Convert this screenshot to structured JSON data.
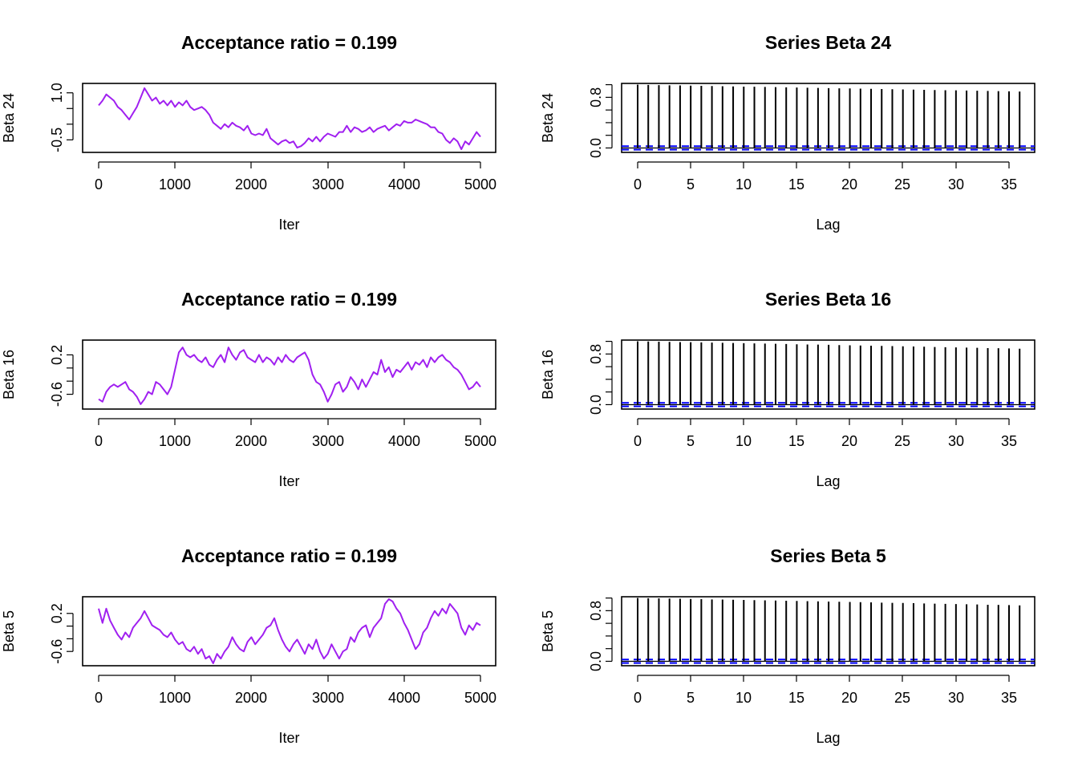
{
  "chart_data": [
    {
      "type": "line",
      "title": "Acceptance ratio = 0.199",
      "xlabel": "Iter",
      "ylabel": "Beta 24",
      "xlim": [
        0,
        5000
      ],
      "ylim": [
        -0.9,
        1.3
      ],
      "xticks": [
        "0",
        "1000",
        "2000",
        "3000",
        "4000",
        "5000"
      ],
      "yticks": [
        "-0.5",
        "1.0"
      ],
      "line_color": "#a020f0",
      "series": [
        {
          "x": [
            0,
            50,
            100,
            150,
            200,
            250,
            300,
            350,
            400,
            450,
            500,
            550,
            600,
            650,
            700,
            750,
            800,
            850,
            900,
            950,
            1000,
            1050,
            1100,
            1150,
            1200,
            1250,
            1300,
            1350,
            1400,
            1450,
            1500,
            1550,
            1600,
            1650,
            1700,
            1750,
            1800,
            1850,
            1900,
            1950,
            2000,
            2050,
            2100,
            2150,
            2200,
            2250,
            2300,
            2350,
            2400,
            2450,
            2500,
            2550,
            2600,
            2650,
            2700,
            2750,
            2800,
            2850,
            2900,
            2950,
            3000,
            3050,
            3100,
            3150,
            3200,
            3250,
            3300,
            3350,
            3400,
            3450,
            3500,
            3550,
            3600,
            3650,
            3700,
            3750,
            3800,
            3850,
            3900,
            3950,
            4000,
            4050,
            4100,
            4150,
            4200,
            4250,
            4300,
            4350,
            4400,
            4450,
            4500,
            4550,
            4600,
            4650,
            4700,
            4750,
            4800,
            4850,
            4900,
            4950,
            5000
          ],
          "values": [
            0.6,
            0.75,
            0.95,
            0.85,
            0.75,
            0.55,
            0.45,
            0.3,
            0.15,
            0.35,
            0.55,
            0.85,
            1.15,
            0.95,
            0.75,
            0.85,
            0.65,
            0.75,
            0.6,
            0.75,
            0.55,
            0.7,
            0.6,
            0.75,
            0.55,
            0.45,
            0.5,
            0.55,
            0.45,
            0.3,
            0.05,
            -0.05,
            -0.15,
            0.0,
            -0.1,
            0.05,
            -0.05,
            -0.1,
            -0.2,
            -0.05,
            -0.3,
            -0.35,
            -0.3,
            -0.35,
            -0.15,
            -0.45,
            -0.55,
            -0.65,
            -0.55,
            -0.5,
            -0.6,
            -0.55,
            -0.75,
            -0.7,
            -0.6,
            -0.45,
            -0.55,
            -0.4,
            -0.55,
            -0.4,
            -0.3,
            -0.35,
            -0.4,
            -0.25,
            -0.25,
            -0.05,
            -0.25,
            -0.1,
            -0.15,
            -0.25,
            -0.2,
            -0.1,
            -0.25,
            -0.15,
            -0.1,
            -0.05,
            -0.2,
            -0.1,
            0.0,
            -0.05,
            0.1,
            0.05,
            0.05,
            0.15,
            0.1,
            0.05,
            0.0,
            -0.1,
            -0.1,
            -0.25,
            -0.3,
            -0.5,
            -0.6,
            -0.45,
            -0.55,
            -0.8,
            -0.55,
            -0.65,
            -0.45,
            -0.25,
            -0.4
          ]
        }
      ]
    },
    {
      "type": "bar",
      "title": "Series Beta 24",
      "xlabel": "Lag",
      "ylabel": "Beta 24",
      "xlim": [
        -1.5,
        37.5
      ],
      "ylim": [
        -0.07,
        1.02
      ],
      "xticks": [
        "0",
        "5",
        "10",
        "15",
        "20",
        "25",
        "30",
        "35"
      ],
      "yticks": [
        "0.0",
        "0.8"
      ],
      "ci": 0.028,
      "ci_color": "#0000ff",
      "lags": [
        0,
        1,
        2,
        3,
        4,
        5,
        6,
        7,
        8,
        9,
        10,
        11,
        12,
        13,
        14,
        15,
        16,
        17,
        18,
        19,
        20,
        21,
        22,
        23,
        24,
        25,
        26,
        27,
        28,
        29,
        30,
        31,
        32,
        33,
        34,
        35,
        36
      ],
      "values": [
        1.0,
        0.996,
        0.993,
        0.99,
        0.988,
        0.985,
        0.982,
        0.979,
        0.976,
        0.973,
        0.97,
        0.967,
        0.964,
        0.961,
        0.958,
        0.955,
        0.952,
        0.949,
        0.946,
        0.943,
        0.94,
        0.937,
        0.934,
        0.931,
        0.928,
        0.925,
        0.922,
        0.919,
        0.916,
        0.913,
        0.91,
        0.907,
        0.904,
        0.901,
        0.898,
        0.895,
        0.892
      ]
    },
    {
      "type": "line",
      "title": "Acceptance ratio = 0.199",
      "xlabel": "Iter",
      "ylabel": "Beta 16",
      "xlim": [
        0,
        5000
      ],
      "ylim": [
        -0.9,
        0.5
      ],
      "xticks": [
        "0",
        "1000",
        "2000",
        "3000",
        "4000",
        "5000"
      ],
      "yticks": [
        "-0.6",
        "0.2"
      ],
      "line_color": "#a020f0",
      "series": [
        {
          "x": [
            0,
            50,
            100,
            150,
            200,
            250,
            300,
            350,
            400,
            450,
            500,
            550,
            600,
            650,
            700,
            750,
            800,
            850,
            900,
            950,
            1000,
            1050,
            1100,
            1150,
            1200,
            1250,
            1300,
            1350,
            1400,
            1450,
            1500,
            1550,
            1600,
            1650,
            1700,
            1750,
            1800,
            1850,
            1900,
            1950,
            2000,
            2050,
            2100,
            2150,
            2200,
            2250,
            2300,
            2350,
            2400,
            2450,
            2500,
            2550,
            2600,
            2650,
            2700,
            2750,
            2800,
            2850,
            2900,
            2950,
            3000,
            3050,
            3100,
            3150,
            3200,
            3250,
            3300,
            3350,
            3400,
            3450,
            3500,
            3550,
            3600,
            3650,
            3700,
            3750,
            3800,
            3850,
            3900,
            3950,
            4000,
            4050,
            4100,
            4150,
            4200,
            4250,
            4300,
            4350,
            4400,
            4450,
            4500,
            4550,
            4600,
            4650,
            4700,
            4750,
            4800,
            4850,
            4900,
            4950,
            5000
          ],
          "values": [
            -0.7,
            -0.75,
            -0.55,
            -0.45,
            -0.4,
            -0.45,
            -0.4,
            -0.35,
            -0.5,
            -0.55,
            -0.65,
            -0.8,
            -0.7,
            -0.55,
            -0.6,
            -0.35,
            -0.4,
            -0.5,
            -0.6,
            -0.45,
            -0.1,
            0.25,
            0.35,
            0.2,
            0.15,
            0.2,
            0.1,
            0.05,
            0.15,
            0.0,
            -0.05,
            0.1,
            0.2,
            0.05,
            0.35,
            0.2,
            0.1,
            0.25,
            0.3,
            0.15,
            0.1,
            0.05,
            0.2,
            0.05,
            0.15,
            0.1,
            0.0,
            0.15,
            0.05,
            0.2,
            0.1,
            0.05,
            0.15,
            0.2,
            0.25,
            0.1,
            -0.2,
            -0.35,
            -0.4,
            -0.55,
            -0.75,
            -0.6,
            -0.4,
            -0.35,
            -0.55,
            -0.45,
            -0.25,
            -0.35,
            -0.5,
            -0.3,
            -0.45,
            -0.3,
            -0.15,
            -0.2,
            0.1,
            -0.15,
            -0.05,
            -0.25,
            -0.1,
            -0.15,
            -0.05,
            0.05,
            -0.1,
            0.05,
            0.0,
            0.1,
            -0.05,
            0.15,
            0.05,
            0.15,
            0.2,
            0.1,
            0.05,
            -0.05,
            -0.1,
            -0.2,
            -0.35,
            -0.5,
            -0.45,
            -0.35,
            -0.45
          ]
        }
      ]
    },
    {
      "type": "bar",
      "title": "Series Beta 16",
      "xlabel": "Lag",
      "ylabel": "Beta 16",
      "xlim": [
        -1.5,
        37.5
      ],
      "ylim": [
        -0.07,
        1.02
      ],
      "xticks": [
        "0",
        "5",
        "10",
        "15",
        "20",
        "25",
        "30",
        "35"
      ],
      "yticks": [
        "0.0",
        "0.8"
      ],
      "ci": 0.028,
      "ci_color": "#0000ff",
      "lags": [
        0,
        1,
        2,
        3,
        4,
        5,
        6,
        7,
        8,
        9,
        10,
        11,
        12,
        13,
        14,
        15,
        16,
        17,
        18,
        19,
        20,
        21,
        22,
        23,
        24,
        25,
        26,
        27,
        28,
        29,
        30,
        31,
        32,
        33,
        34,
        35,
        36
      ],
      "values": [
        1.0,
        0.998,
        0.995,
        0.992,
        0.989,
        0.986,
        0.983,
        0.98,
        0.977,
        0.974,
        0.971,
        0.967,
        0.964,
        0.961,
        0.958,
        0.954,
        0.951,
        0.948,
        0.945,
        0.941,
        0.938,
        0.935,
        0.931,
        0.928,
        0.925,
        0.921,
        0.918,
        0.915,
        0.911,
        0.908,
        0.905,
        0.901,
        0.898,
        0.894,
        0.891,
        0.888,
        0.884
      ]
    },
    {
      "type": "line",
      "title": "Acceptance ratio = 0.199",
      "xlabel": "Iter",
      "ylabel": "Beta 5",
      "xlim": [
        0,
        5000
      ],
      "ylim": [
        -0.9,
        0.55
      ],
      "xticks": [
        "0",
        "1000",
        "2000",
        "3000",
        "4000",
        "5000"
      ],
      "yticks": [
        "-0.6",
        "0.2"
      ],
      "line_color": "#a020f0",
      "series": [
        {
          "x": [
            0,
            50,
            100,
            150,
            200,
            250,
            300,
            350,
            400,
            450,
            500,
            550,
            600,
            650,
            700,
            750,
            800,
            850,
            900,
            950,
            1000,
            1050,
            1100,
            1150,
            1200,
            1250,
            1300,
            1350,
            1400,
            1450,
            1500,
            1550,
            1600,
            1650,
            1700,
            1750,
            1800,
            1850,
            1900,
            1950,
            2000,
            2050,
            2100,
            2150,
            2200,
            2250,
            2300,
            2350,
            2400,
            2450,
            2500,
            2550,
            2600,
            2650,
            2700,
            2750,
            2800,
            2850,
            2900,
            2950,
            3000,
            3050,
            3100,
            3150,
            3200,
            3250,
            3300,
            3350,
            3400,
            3450,
            3500,
            3550,
            3600,
            3650,
            3700,
            3750,
            3800,
            3850,
            3900,
            3950,
            4000,
            4050,
            4100,
            4150,
            4200,
            4250,
            4300,
            4350,
            4400,
            4450,
            4500,
            4550,
            4600,
            4650,
            4700,
            4750,
            4800,
            4850,
            4900,
            4950,
            5000
          ],
          "values": [
            0.3,
            0.0,
            0.3,
            0.05,
            -0.1,
            -0.25,
            -0.35,
            -0.2,
            -0.3,
            -0.1,
            0.0,
            0.1,
            0.25,
            0.1,
            -0.05,
            -0.1,
            -0.15,
            -0.25,
            -0.3,
            -0.2,
            -0.35,
            -0.45,
            -0.4,
            -0.55,
            -0.6,
            -0.5,
            -0.65,
            -0.55,
            -0.75,
            -0.7,
            -0.85,
            -0.65,
            -0.75,
            -0.6,
            -0.5,
            -0.3,
            -0.45,
            -0.55,
            -0.6,
            -0.4,
            -0.3,
            -0.45,
            -0.35,
            -0.25,
            -0.1,
            -0.05,
            0.1,
            -0.15,
            -0.35,
            -0.5,
            -0.6,
            -0.45,
            -0.35,
            -0.5,
            -0.65,
            -0.45,
            -0.55,
            -0.35,
            -0.6,
            -0.75,
            -0.65,
            -0.45,
            -0.6,
            -0.75,
            -0.6,
            -0.55,
            -0.3,
            -0.4,
            -0.2,
            -0.1,
            -0.05,
            -0.3,
            -0.1,
            0.0,
            0.1,
            0.4,
            0.5,
            0.45,
            0.3,
            0.2,
            0.0,
            -0.15,
            -0.35,
            -0.55,
            -0.45,
            -0.2,
            -0.1,
            0.1,
            0.25,
            0.15,
            0.3,
            0.2,
            0.4,
            0.3,
            0.2,
            -0.1,
            -0.25,
            -0.05,
            -0.15,
            0.0,
            -0.05
          ]
        }
      ]
    },
    {
      "type": "bar",
      "title": "Series Beta 5",
      "xlabel": "Lag",
      "ylabel": "Beta 5",
      "xlim": [
        -1.5,
        37.5
      ],
      "ylim": [
        -0.07,
        1.02
      ],
      "xticks": [
        "0",
        "5",
        "10",
        "15",
        "20",
        "25",
        "30",
        "35"
      ],
      "yticks": [
        "0.0",
        "0.8"
      ],
      "ci": 0.028,
      "ci_color": "#0000ff",
      "lags": [
        0,
        1,
        2,
        3,
        4,
        5,
        6,
        7,
        8,
        9,
        10,
        11,
        12,
        13,
        14,
        15,
        16,
        17,
        18,
        19,
        20,
        21,
        22,
        23,
        24,
        25,
        26,
        27,
        28,
        29,
        30,
        31,
        32,
        33,
        34,
        35,
        36
      ],
      "values": [
        1.0,
        0.997,
        0.994,
        0.991,
        0.988,
        0.985,
        0.982,
        0.978,
        0.975,
        0.972,
        0.969,
        0.966,
        0.963,
        0.96,
        0.956,
        0.953,
        0.95,
        0.947,
        0.944,
        0.94,
        0.937,
        0.934,
        0.931,
        0.927,
        0.924,
        0.921,
        0.918,
        0.914,
        0.911,
        0.908,
        0.904,
        0.901,
        0.898,
        0.894,
        0.891,
        0.888,
        0.884
      ]
    }
  ]
}
